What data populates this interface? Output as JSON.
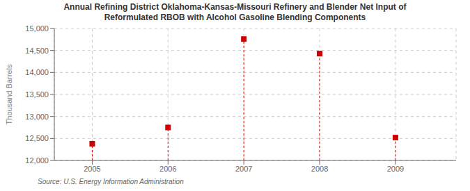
{
  "chart_data": {
    "type": "scatter",
    "title": "Annual Refining District Oklahoma-Kansas-Missouri Refinery and Blender Net Input of\nReformulated RBOB with Alcohol Gasoline Blending Components",
    "ylabel": "Thousand Barrels",
    "source": "Source: U.S. Energy Information Administration",
    "x": [
      2005,
      2006,
      2007,
      2008,
      2009
    ],
    "values": [
      12380,
      12750,
      14760,
      14430,
      12520
    ],
    "xlim": [
      2004.5,
      2009.8
    ],
    "xticks": [
      2005,
      2006,
      2007,
      2008,
      2009
    ],
    "ylim": [
      12000,
      15000
    ],
    "yticks": [
      {
        "value": 12000,
        "label": "12,000"
      },
      {
        "value": 12500,
        "label": "12,500"
      },
      {
        "value": 13000,
        "label": "13,000"
      },
      {
        "value": 13500,
        "label": "13,500"
      },
      {
        "value": 14000,
        "label": "14,000"
      },
      {
        "value": 14500,
        "label": "14,500"
      },
      {
        "value": 15000,
        "label": "15,000"
      }
    ],
    "color": "#cc0000",
    "marker": "square",
    "line_style": "dashed",
    "grid": true
  }
}
